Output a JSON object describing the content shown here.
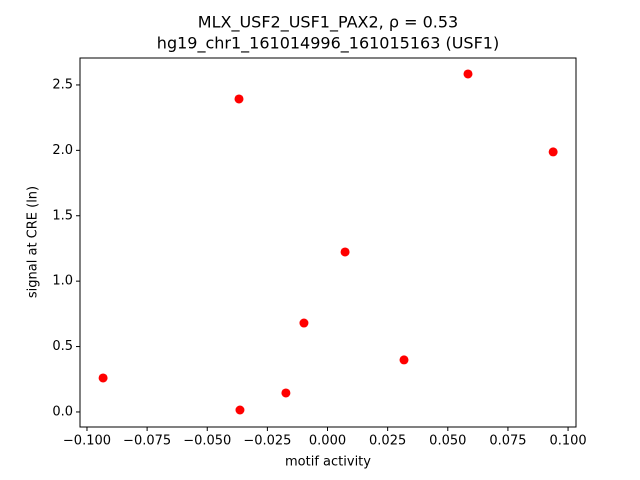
{
  "chart_data": {
    "type": "scatter",
    "title": "MLX_USF2_USF1_PAX2, ρ = 0.53",
    "subtitle": "hg19_chr1_161014996_161015163 (USF1)",
    "x_label": "motif activity",
    "y_label": "signal at CRE (ln)",
    "color": "#ff0000",
    "x": [
      0.0584,
      0.0938,
      -0.0368,
      0.0073,
      -0.0098,
      0.0318,
      -0.0933,
      -0.0173,
      -0.0364
    ],
    "values": [
      2.584,
      1.988,
      2.393,
      1.223,
      0.68,
      0.398,
      0.26,
      0.145,
      0.015
    ],
    "xlim": [
      -0.1029,
      0.1033
    ],
    "ylim": [
      -0.115,
      2.706
    ],
    "xticks": [
      {
        "value": -0.1,
        "label": "−0.100"
      },
      {
        "value": -0.075,
        "label": "−0.075"
      },
      {
        "value": -0.05,
        "label": "−0.050"
      },
      {
        "value": -0.025,
        "label": "−0.025"
      },
      {
        "value": 0,
        "label": "0.000"
      },
      0.025,
      {
        "value": 0.05,
        "label": "0.050"
      },
      0.075,
      {
        "value": 0.1,
        "label": "0.100"
      }
    ],
    "yticks": [
      {
        "value": 0,
        "label": "0.0"
      },
      0.5,
      {
        "value": 1,
        "label": "1.0"
      },
      1.5,
      {
        "value": 2,
        "label": "2.0"
      },
      2.5
    ]
  }
}
